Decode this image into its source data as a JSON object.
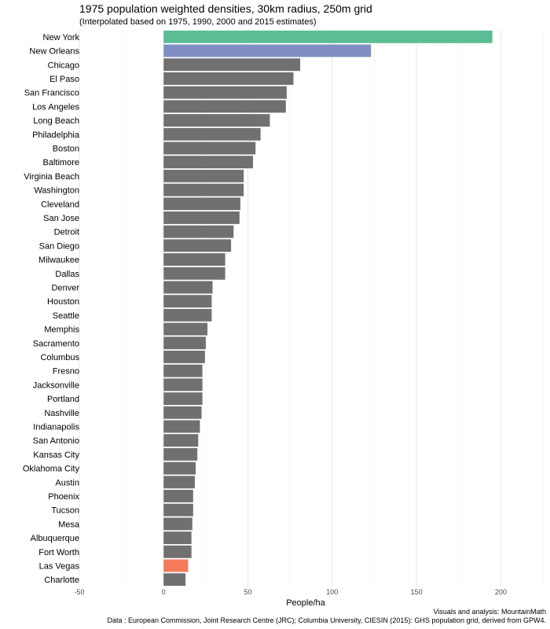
{
  "chart_data": {
    "type": "bar",
    "orientation": "horizontal",
    "title": "1975 population weighted densities, 30km radius, 250m grid",
    "subtitle": "(Interpolated based on 1975, 1990, 2000 and 2015 estimates)",
    "xlabel": "People/ha",
    "ylabel": "",
    "xlim": [
      -50,
      225
    ],
    "xticks": [
      -50,
      0,
      50,
      100,
      150,
      200
    ],
    "grid": true,
    "caption_lines": [
      "Visuals and analysis: MountainMath",
      "Data : European Commission, Joint Research Centre (JRC); Columbia University, CIESIN (2015): GHS population grid, derived from GPW4."
    ],
    "default_color": "#707070",
    "categories": [
      "New York",
      "New Orleans",
      "Chicago",
      "El Paso",
      "San Francisco",
      "Los Angeles",
      "Long Beach",
      "Philadelphia",
      "Boston",
      "Baltimore",
      "Virginia Beach",
      "Washington",
      "Cleveland",
      "San Jose",
      "Detroit",
      "San Diego",
      "Milwaukee",
      "Dallas",
      "Denver",
      "Houston",
      "Seattle",
      "Memphis",
      "Sacramento",
      "Columbus",
      "Fresno",
      "Jacksonville",
      "Portland",
      "Nashville",
      "Indianapolis",
      "San Antonio",
      "Kansas City",
      "Oklahoma City",
      "Austin",
      "Phoenix",
      "Tucson",
      "Mesa",
      "Albuquerque",
      "Fort Worth",
      "Las Vegas",
      "Charlotte"
    ],
    "values": [
      195,
      123,
      81,
      77,
      73,
      72.5,
      63,
      57.5,
      54.5,
      53,
      47.5,
      47.5,
      45.5,
      45,
      41.5,
      40,
      36.5,
      36.5,
      29,
      28.5,
      28.5,
      26,
      25,
      24.5,
      23,
      23,
      23,
      22.5,
      21.5,
      20.5,
      20,
      19,
      18.5,
      17.5,
      17.5,
      17,
      16.5,
      16.5,
      14.5,
      13
    ],
    "highlight_colors": {
      "New York": "#5bbd93",
      "New Orleans": "#7f8fc3",
      "Las Vegas": "#f47a5a"
    }
  }
}
